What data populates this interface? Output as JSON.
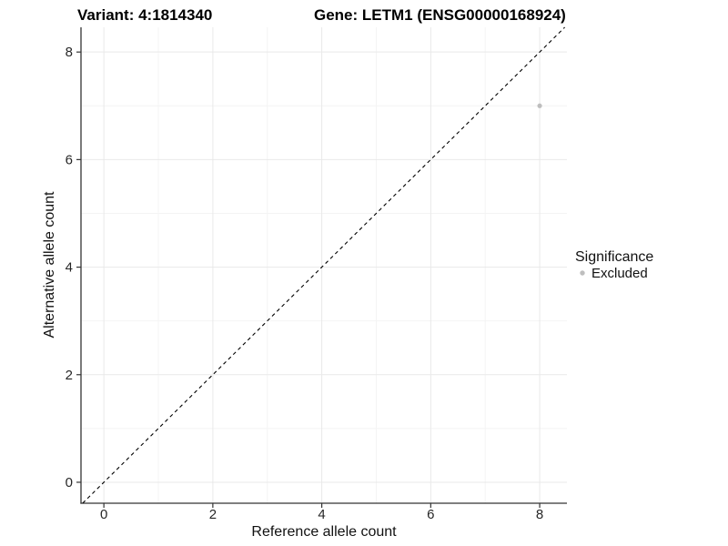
{
  "figure": {
    "title_variant": "Variant: 4:1814340",
    "title_gene": "Gene: LETM1 (ENSG00000168924)"
  },
  "axes": {
    "x_label": "Reference allele count",
    "y_label": "Alternative allele count"
  },
  "legend": {
    "title": "Significance",
    "items": [
      {
        "label": "Excluded",
        "color": "#bebebe"
      }
    ]
  },
  "chart_data": {
    "type": "scatter",
    "titles": [
      "Variant: 4:1814340",
      "Gene: LETM1 (ENSG00000168924)"
    ],
    "xlabel": "Reference allele count",
    "ylabel": "Alternative allele count",
    "xlim": [
      -0.42,
      8.5
    ],
    "ylim": [
      -0.39,
      8.46
    ],
    "xticks": [
      0,
      2,
      4,
      6,
      8
    ],
    "yticks": [
      0,
      2,
      4,
      6,
      8
    ],
    "minor_xticks": [
      1,
      3,
      5,
      7
    ],
    "minor_yticks": [
      1,
      3,
      5,
      7
    ],
    "grid": "major+minor",
    "legend_position": "right",
    "series": [
      {
        "name": "Excluded",
        "color": "#bebebe",
        "marker": "circle",
        "points": [
          {
            "x": 8,
            "y": 7
          }
        ]
      }
    ],
    "reference_line": {
      "type": "identity y=x",
      "style": "dashed",
      "color": "#000000",
      "from": -0.39,
      "to": 8.46
    },
    "colors": {
      "background": "#ffffff",
      "axis": "#333333",
      "grid_major": "#e9e9e9",
      "grid_minor": "#f4f4f4",
      "tick_text": "#262626"
    }
  }
}
